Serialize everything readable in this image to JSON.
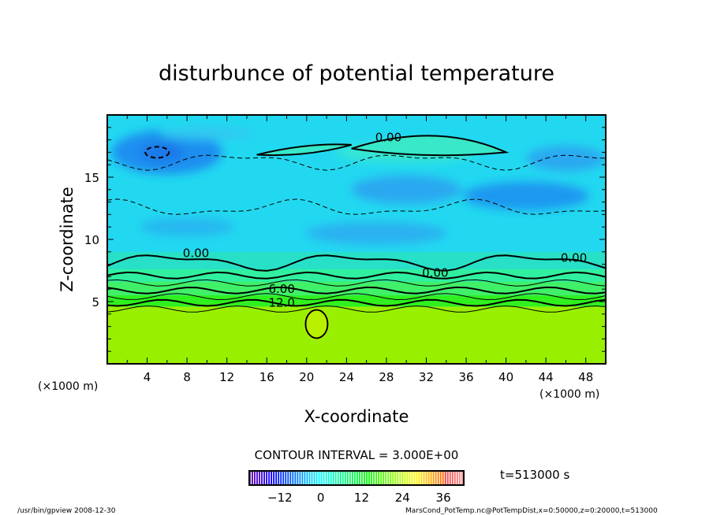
{
  "chart_data": {
    "type": "heatmap",
    "subtype": "filled-contour",
    "title": "disturbunce of potential temperature",
    "xlabel": "X-coordinate",
    "ylabel": "Z-coordinate",
    "x_unit_left": "(×1000 m)",
    "x_unit_right": "(×1000 m)",
    "xlim": [
      0,
      50
    ],
    "ylim": [
      0,
      20
    ],
    "x_ticks": [
      4,
      8,
      12,
      16,
      20,
      24,
      28,
      32,
      36,
      40,
      44,
      48
    ],
    "y_ticks": [
      5,
      10,
      15
    ],
    "contour_interval_text": "CONTOUR INTERVAL = 3.000E+00",
    "contour_interval": 3.0,
    "contour_labels": [
      {
        "text": "0.00",
        "x": 28.2,
        "z": 18.2
      },
      {
        "text": "0.00",
        "x": 8.9,
        "z": 8.9
      },
      {
        "text": "0.00",
        "x": 32.9,
        "z": 7.3
      },
      {
        "text": "0.00",
        "x": 46.8,
        "z": 8.5
      },
      {
        "text": "6.00",
        "x": 17.5,
        "z": 6.0
      },
      {
        "text": "12.0",
        "x": 17.5,
        "z": 4.9
      }
    ],
    "colorbar": {
      "range": [
        -21,
        42
      ],
      "ticks": [
        -12,
        0,
        12,
        24,
        36
      ],
      "tick_labels": [
        "−12",
        "0",
        "12",
        "24",
        "36"
      ]
    },
    "time_label": "t=513000 s",
    "grid": false
  },
  "footer": {
    "left": "/usr/bin/gpview   2008-12-30",
    "right": "MarsCond_PotTemp.nc@PotTempDist,x=0:50000,z=0:20000,t=513000"
  }
}
